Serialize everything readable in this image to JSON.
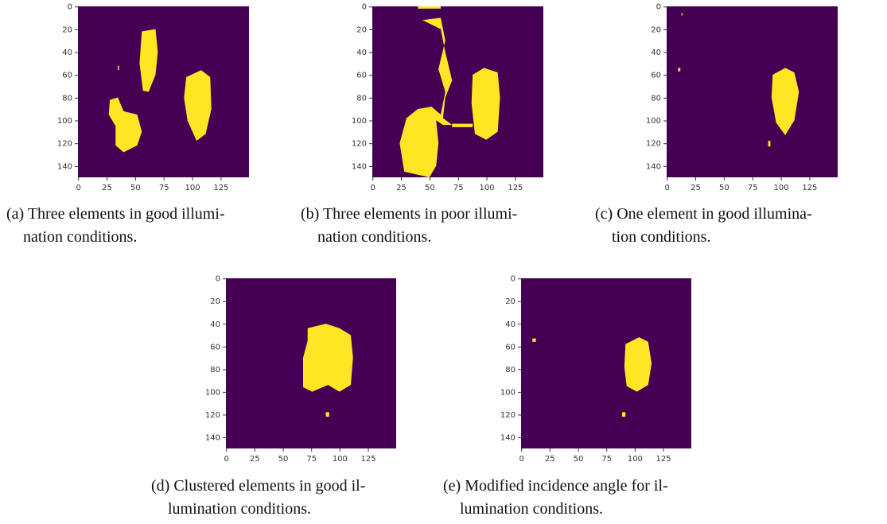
{
  "figures": [
    {
      "caption_lines": [
        "(a) Three elements in good illumi-",
        "nation conditions."
      ],
      "xticks": [
        0,
        25,
        50,
        75,
        100,
        125
      ],
      "yticks": [
        0,
        20,
        40,
        60,
        80,
        100,
        120,
        140
      ]
    },
    {
      "caption_lines": [
        "(b) Three elements in poor illumi-",
        "nation conditions."
      ],
      "xticks": [
        0,
        25,
        50,
        75,
        100,
        125
      ],
      "yticks": [
        0,
        20,
        40,
        60,
        80,
        100,
        120,
        140
      ]
    },
    {
      "caption_lines": [
        "(c) One element in good illumina-",
        "tion conditions."
      ],
      "xticks": [
        0,
        25,
        50,
        75,
        100,
        125
      ],
      "yticks": [
        0,
        20,
        40,
        60,
        80,
        100,
        120,
        140
      ]
    },
    {
      "caption_lines": [
        "(d) Clustered elements in good il-",
        "lumination conditions."
      ],
      "xticks": [
        0,
        25,
        50,
        75,
        100,
        125
      ],
      "yticks": [
        0,
        20,
        40,
        60,
        80,
        100,
        120,
        140
      ]
    },
    {
      "caption_lines": [
        "(e) Modified incidence angle for il-",
        "lumination conditions."
      ],
      "xticks": [
        0,
        25,
        50,
        75,
        100,
        125
      ],
      "yticks": [
        0,
        20,
        40,
        60,
        80,
        100,
        120,
        140
      ]
    }
  ]
}
